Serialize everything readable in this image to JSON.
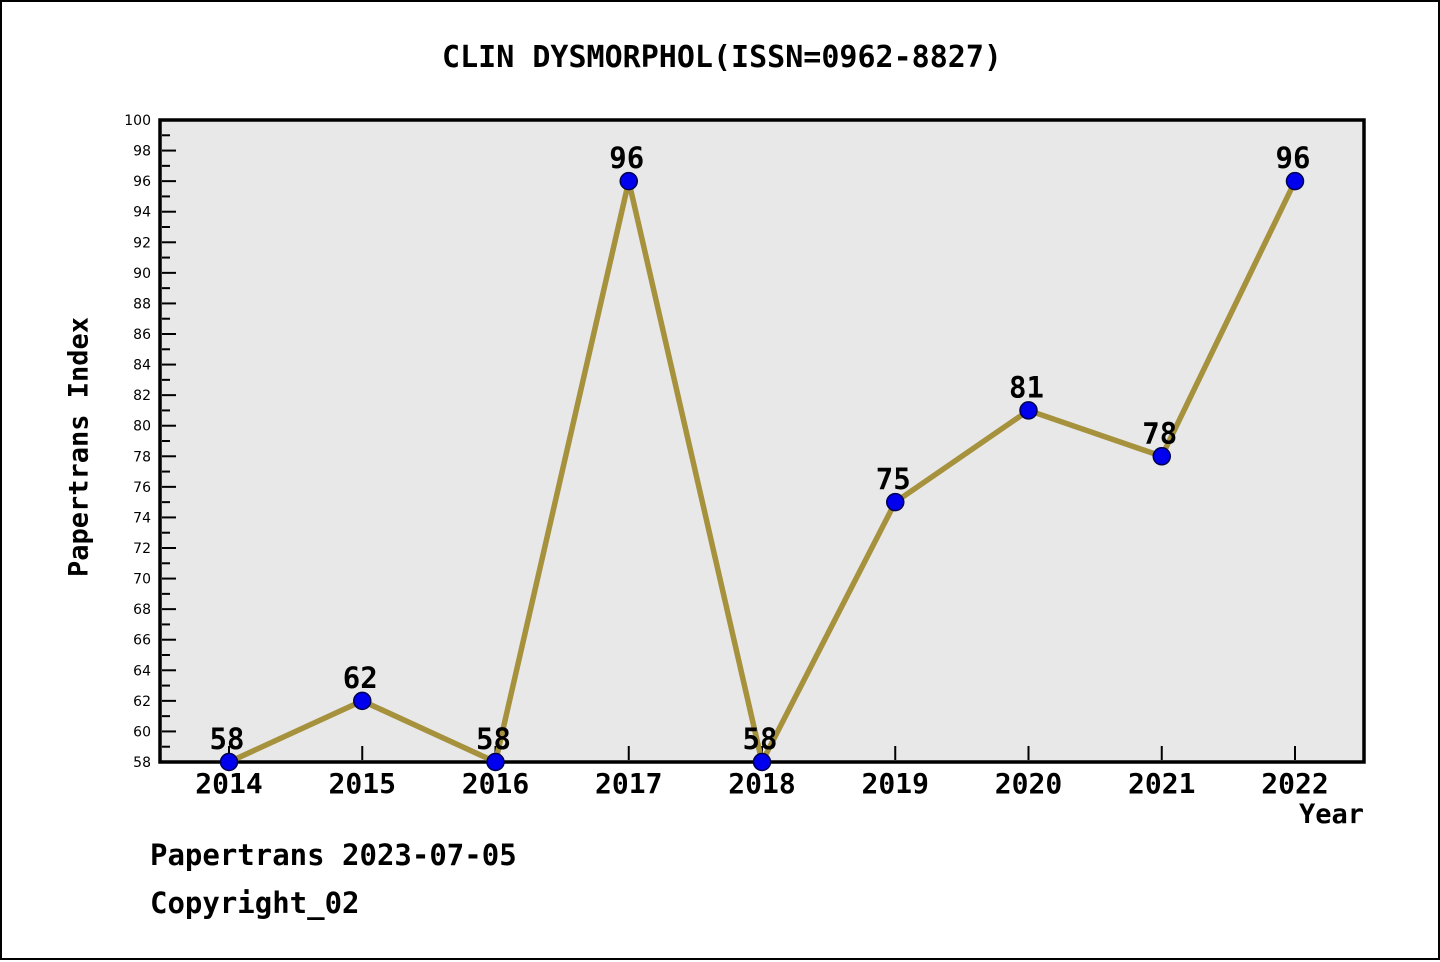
{
  "footer": {
    "line1": "Papertrans 2023-07-05",
    "line2": "Copyright_02"
  },
  "chart_data": {
    "type": "line",
    "title": "CLIN DYSMORPHOL(ISSN=0962-8827)",
    "xlabel": "Year",
    "ylabel": "Papertrans Index",
    "x": [
      2014,
      2015,
      2016,
      2017,
      2018,
      2019,
      2020,
      2021,
      2022
    ],
    "values": [
      58,
      62,
      58,
      96,
      58,
      75,
      81,
      78,
      96
    ],
    "ylim": [
      58,
      100
    ],
    "ytick_step": 2,
    "ytick_minor_step": 1,
    "grid": false,
    "legend": false,
    "point_labels_visible": true,
    "colors": {
      "line": "#A6913C",
      "marker": "#0000EE",
      "marker_edge": "#000050",
      "plot_bg": "#E8E8E8",
      "frame": "#000000",
      "text": "#000000"
    }
  }
}
